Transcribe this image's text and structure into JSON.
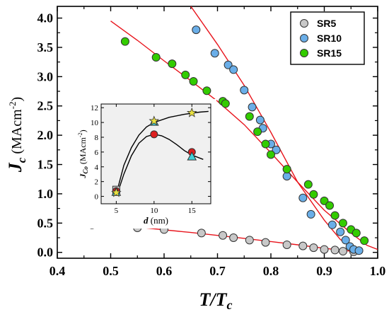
{
  "chart_data": [
    {
      "type": "scatter",
      "xlabel": "T/Tc",
      "ylabel": "Jc (MAcm-2)",
      "xlim": [
        0.4,
        1.0
      ],
      "ylim": [
        -0.1,
        4.2
      ],
      "x_ticks": [
        "0.4",
        "0.5",
        "0.6",
        "0.7",
        "0.8",
        "0.9",
        "1.0"
      ],
      "y_ticks": [
        "0.0",
        "0.5",
        "1.0",
        "1.5",
        "2.0",
        "2.5",
        "3.0",
        "3.5",
        "4.0"
      ],
      "legend_position": "top-right",
      "series": [
        {
          "name": "SR5",
          "color": "#c8c8c8",
          "points": [
            [
              0.465,
              0.47
            ],
            [
              0.55,
              0.42
            ],
            [
              0.6,
              0.39
            ],
            [
              0.67,
              0.33
            ],
            [
              0.71,
              0.29
            ],
            [
              0.73,
              0.25
            ],
            [
              0.76,
              0.21
            ],
            [
              0.79,
              0.17
            ],
            [
              0.83,
              0.13
            ],
            [
              0.86,
              0.11
            ],
            [
              0.88,
              0.08
            ],
            [
              0.9,
              0.05
            ],
            [
              0.92,
              0.04
            ],
            [
              0.935,
              0.02
            ],
            [
              0.955,
              0.01
            ]
          ],
          "fit_line": [
            [
              0.43,
              0.52
            ],
            [
              0.55,
              0.43
            ],
            [
              0.65,
              0.34
            ],
            [
              0.75,
              0.24
            ],
            [
              0.85,
              0.13
            ],
            [
              0.9,
              0.07
            ],
            [
              0.95,
              0.02
            ],
            [
              0.97,
              0.0
            ]
          ]
        },
        {
          "name": "SR10",
          "color": "#6aaee8",
          "points": [
            [
              0.66,
              3.8
            ],
            [
              0.695,
              3.4
            ],
            [
              0.72,
              3.2
            ],
            [
              0.73,
              3.12
            ],
            [
              0.75,
              2.77
            ],
            [
              0.765,
              2.48
            ],
            [
              0.78,
              2.26
            ],
            [
              0.785,
              2.12
            ],
            [
              0.8,
              1.85
            ],
            [
              0.81,
              1.75
            ],
            [
              0.83,
              1.3
            ],
            [
              0.86,
              0.93
            ],
            [
              0.875,
              0.65
            ],
            [
              0.915,
              0.47
            ],
            [
              0.93,
              0.35
            ],
            [
              0.94,
              0.21
            ],
            [
              0.948,
              0.1
            ],
            [
              0.955,
              0.05
            ],
            [
              0.965,
              0.03
            ]
          ],
          "fit_line": [
            [
              0.65,
              4.2
            ],
            [
              0.7,
              3.55
            ],
            [
              0.75,
              2.85
            ],
            [
              0.8,
              2.05
            ],
            [
              0.85,
              1.2
            ],
            [
              0.9,
              0.55
            ],
            [
              0.93,
              0.22
            ],
            [
              0.96,
              0.03
            ]
          ]
        },
        {
          "name": "SR15",
          "color": "#33cc00",
          "points": [
            [
              0.527,
              3.6
            ],
            [
              0.585,
              3.33
            ],
            [
              0.615,
              3.22
            ],
            [
              0.64,
              3.03
            ],
            [
              0.655,
              2.92
            ],
            [
              0.68,
              2.76
            ],
            [
              0.71,
              2.58
            ],
            [
              0.715,
              2.54
            ],
            [
              0.76,
              2.32
            ],
            [
              0.775,
              2.06
            ],
            [
              0.79,
              1.85
            ],
            [
              0.8,
              1.67
            ],
            [
              0.83,
              1.42
            ],
            [
              0.87,
              1.16
            ],
            [
              0.88,
              0.99
            ],
            [
              0.9,
              0.88
            ],
            [
              0.91,
              0.8
            ],
            [
              0.92,
              0.63
            ],
            [
              0.935,
              0.5
            ],
            [
              0.95,
              0.39
            ],
            [
              0.96,
              0.33
            ],
            [
              0.975,
              0.2
            ]
          ],
          "fit_line": [
            [
              0.5,
              3.95
            ],
            [
              0.55,
              3.62
            ],
            [
              0.6,
              3.27
            ],
            [
              0.65,
              2.93
            ],
            [
              0.7,
              2.58
            ],
            [
              0.75,
              2.18
            ],
            [
              0.8,
              1.7
            ],
            [
              0.85,
              1.2
            ],
            [
              0.9,
              0.72
            ],
            [
              0.95,
              0.33
            ],
            [
              0.98,
              0.12
            ],
            [
              1.0,
              0.05
            ]
          ]
        }
      ]
    },
    {
      "type": "scatter",
      "xlabel": "d (nm)",
      "ylabel": "JCo (MAcm-2)",
      "xlim": [
        3,
        17.5
      ],
      "ylim": [
        -1,
        12.5
      ],
      "x_ticks": [
        "5",
        "10",
        "15"
      ],
      "y_ticks": [
        "0",
        "2",
        "4",
        "6",
        "8",
        "10",
        "12"
      ],
      "grid": false,
      "series": [
        {
          "name": "star",
          "color": "#e8e040",
          "points": [
            [
              5,
              0.5
            ],
            [
              10,
              10.2
            ],
            [
              15,
              11.3
            ]
          ]
        },
        {
          "name": "triangle",
          "color": "#40d0d8",
          "points": [
            [
              5,
              0.6
            ],
            [
              10,
              10.1
            ],
            [
              15,
              5.4
            ]
          ]
        },
        {
          "name": "circle",
          "color": "#dd1f1f",
          "points": [
            [
              5,
              0.7
            ],
            [
              10,
              8.4
            ],
            [
              15,
              6.0
            ]
          ]
        },
        {
          "name": "square",
          "color": "#c8c8c8",
          "points": [
            [
              5,
              0.9
            ]
          ]
        }
      ],
      "curves": [
        [
          [
            5,
            0.3
          ],
          [
            6,
            4.2
          ],
          [
            7,
            6.6
          ],
          [
            8,
            8.3
          ],
          [
            9,
            9.4
          ],
          [
            10,
            10.0
          ],
          [
            12,
            10.7
          ],
          [
            14,
            11.1
          ],
          [
            16,
            11.4
          ],
          [
            17.2,
            11.5
          ]
        ],
        [
          [
            5.1,
            0.2
          ],
          [
            6,
            3.0
          ],
          [
            7,
            5.5
          ],
          [
            8,
            7.2
          ],
          [
            9,
            8.1
          ],
          [
            10,
            8.4
          ],
          [
            11,
            8.2
          ],
          [
            12,
            7.7
          ],
          [
            13,
            7.0
          ],
          [
            14,
            6.2
          ],
          [
            15,
            5.6
          ],
          [
            16.5,
            5.0
          ]
        ]
      ]
    }
  ]
}
